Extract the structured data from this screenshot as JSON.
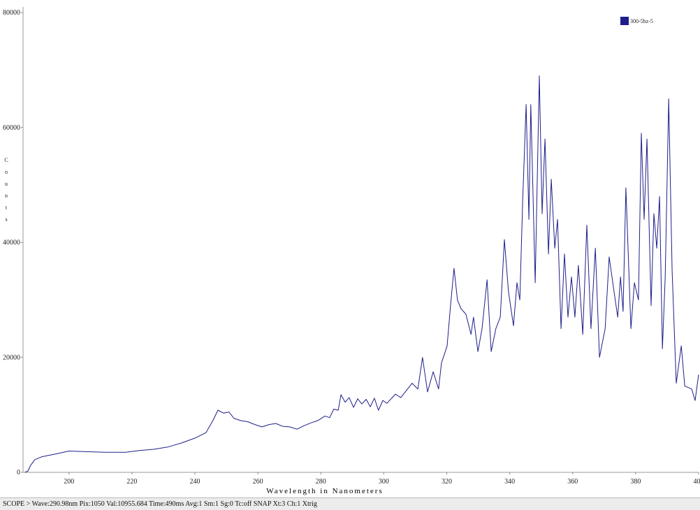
{
  "chart_data": {
    "type": "line",
    "x_label": "Wavelength in Nanometers",
    "y_label": "Counts",
    "xlim": [
      185.4,
      400
    ],
    "ylim": [
      0,
      80000
    ],
    "xticks": [
      200,
      220,
      240,
      260,
      280,
      300,
      320,
      340,
      360,
      380,
      400
    ],
    "yticks": [
      0,
      20000,
      40000,
      60000,
      80000
    ],
    "legend": "top-right",
    "x": [
      186,
      186.9,
      187.8,
      189.1,
      191.3,
      195.8,
      200,
      204.7,
      211.3,
      218,
      222.4,
      226.9,
      231.3,
      235.7,
      240.2,
      243.5,
      245.7,
      247.3,
      249.1,
      250.8,
      252.4,
      254.6,
      256.8,
      259.1,
      261.3,
      263.5,
      265.7,
      267.9,
      270.2,
      272.4,
      274.6,
      276.8,
      279,
      281.3,
      282.8,
      284.1,
      285.5,
      286.4,
      287.7,
      289,
      290.4,
      291.7,
      293,
      294.4,
      295.7,
      297,
      298.3,
      299.7,
      301,
      302.3,
      303.7,
      305.4,
      309,
      310.8,
      312.3,
      313.9,
      315.7,
      317.4,
      318.3,
      320.1,
      321.2,
      322.3,
      323.4,
      324.5,
      326.1,
      327.7,
      328.5,
      329.9,
      331.2,
      332.8,
      334.1,
      335.6,
      337,
      338.3,
      339.6,
      341.2,
      342.3,
      343.2,
      344.1,
      345.2,
      346.1,
      346.7,
      348.1,
      349.4,
      350.3,
      351.2,
      352.3,
      353.2,
      354.3,
      355.2,
      356.3,
      357.4,
      358.5,
      359.6,
      360.7,
      361.8,
      363.2,
      364.5,
      365.8,
      367.2,
      368.5,
      370.3,
      371.6,
      373,
      374.3,
      375.2,
      376,
      376.9,
      378.5,
      379.6,
      380.9,
      381.8,
      382.7,
      383.6,
      384.9,
      385.8,
      386.7,
      387.6,
      388.5,
      389.4,
      390.5,
      391.6,
      392.9,
      394.5,
      395.6,
      397.8,
      398.9,
      400
    ],
    "series": [
      {
        "name": "300-5hz-5",
        "color": "#1e1e8a",
        "values": [
          0,
          200,
          1200,
          2200,
          2700,
          3200,
          3700,
          3600,
          3500,
          3500,
          3800,
          4000,
          4400,
          5100,
          6000,
          6900,
          9000,
          10800,
          10300,
          10500,
          9400,
          9000,
          8800,
          8300,
          7900,
          8300,
          8500,
          8000,
          7900,
          7500,
          8100,
          8600,
          9000,
          9800,
          9500,
          11000,
          10800,
          13500,
          12200,
          13000,
          11300,
          12800,
          11900,
          12700,
          11400,
          12900,
          10800,
          12500,
          12000,
          12800,
          13600,
          13000,
          15500,
          14500,
          20000,
          14000,
          17500,
          14500,
          19000,
          22000,
          29000,
          35500,
          30000,
          28500,
          27500,
          24000,
          27000,
          21000,
          25000,
          33500,
          21000,
          25000,
          27000,
          40500,
          31500,
          25500,
          33000,
          30000,
          47000,
          64000,
          44000,
          64000,
          33000,
          69000,
          45000,
          58000,
          38000,
          51000,
          39000,
          44000,
          25000,
          38000,
          27000,
          34000,
          27000,
          36000,
          24000,
          43000,
          25000,
          39000,
          20000,
          25000,
          37500,
          32000,
          27000,
          34000,
          28000,
          49500,
          25000,
          33000,
          30000,
          59000,
          44000,
          58000,
          29000,
          45000,
          39000,
          48000,
          21500,
          34000,
          65000,
          35000,
          15500,
          22000,
          15000,
          14500,
          12500,
          17000
        ]
      }
    ]
  },
  "status_bar": "SCOPE >  Wave:290.98nm  Pix:1050  Val:10955.684  Time:490ms  Avg:1  Sm:1  Sg:0  Tc:off  SNAP  Xt:3  Ch:1  Xtrig"
}
